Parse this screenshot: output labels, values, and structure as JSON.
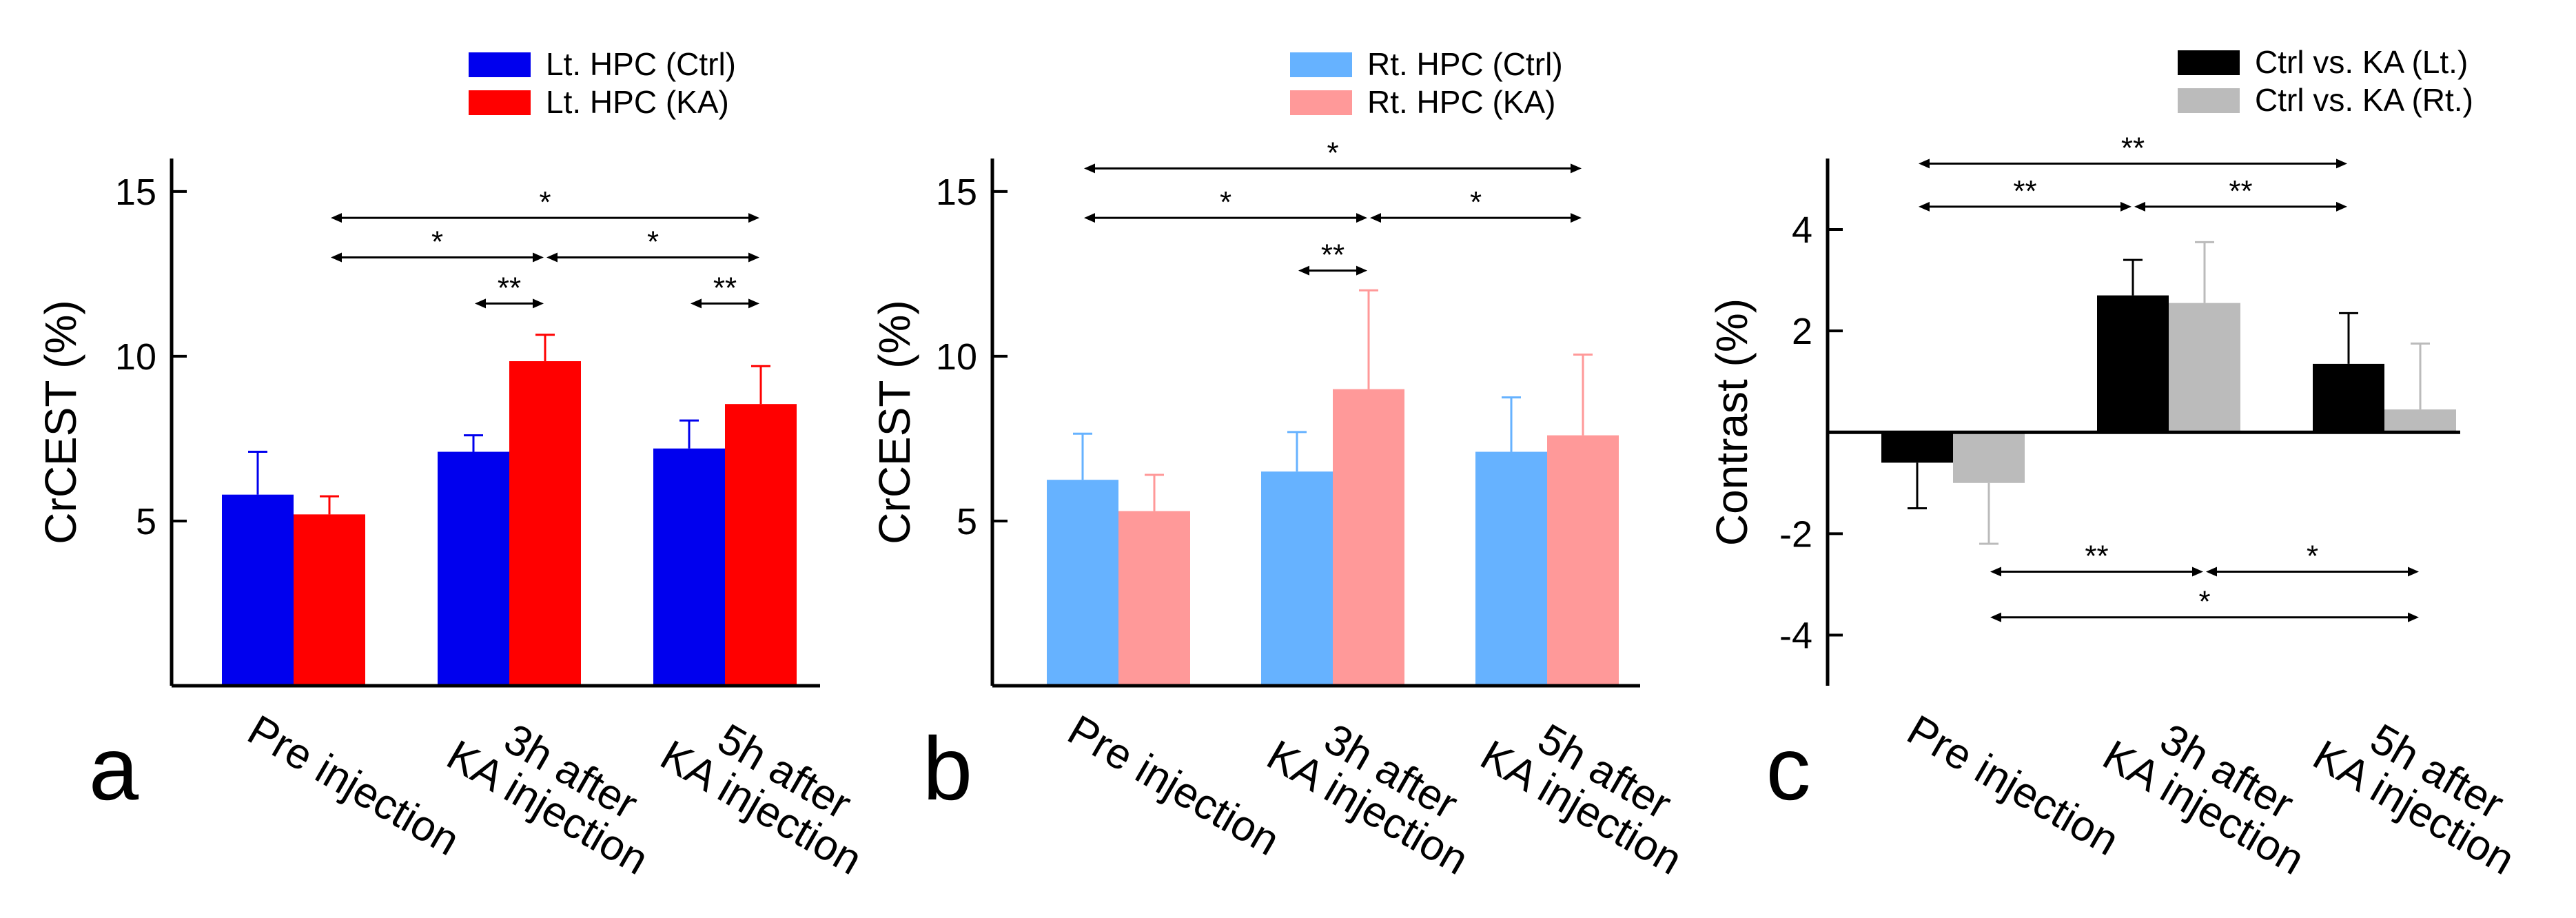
{
  "figure_title": "",
  "chart_data": [
    {
      "type": "bar",
      "panel_label": "a",
      "title": "",
      "ylabel": "CrCEST (%)",
      "xlabel": "",
      "ylim": [
        0,
        16
      ],
      "yticks": [
        5,
        10,
        15
      ],
      "categories": [
        {
          "line1": "Pre injection",
          "line2": ""
        },
        {
          "line1": "3h after",
          "line2": "KA injection"
        },
        {
          "line1": "5h after",
          "line2": "KA injection"
        }
      ],
      "series": [
        {
          "name": "Lt. HPC (Ctrl)",
          "color": "#0000ee",
          "values": [
            5.8,
            7.1,
            7.2
          ],
          "errors": [
            1.3,
            0.5,
            0.85
          ]
        },
        {
          "name": "Lt. HPC (KA)",
          "color": "#ff0000",
          "values": [
            5.2,
            9.85,
            8.55
          ],
          "errors": [
            0.55,
            0.8,
            1.15
          ]
        }
      ],
      "significance": [
        {
          "from": [
            1,
            0
          ],
          "to": [
            1,
            1
          ],
          "label": "**",
          "y": 11.6
        },
        {
          "from": [
            2,
            0
          ],
          "to": [
            2,
            1
          ],
          "label": "**",
          "y": 11.6
        },
        {
          "from": [
            0,
            1
          ],
          "to": [
            1,
            1
          ],
          "label": "*",
          "y": 13.0
        },
        {
          "from": [
            1,
            1
          ],
          "to": [
            2,
            1
          ],
          "label": "*",
          "y": 13.0
        },
        {
          "from": [
            0,
            1
          ],
          "to": [
            2,
            1
          ],
          "label": "*",
          "y": 14.2
        }
      ]
    },
    {
      "type": "bar",
      "panel_label": "b",
      "title": "",
      "ylabel": "CrCEST (%)",
      "xlabel": "",
      "ylim": [
        0,
        16
      ],
      "yticks": [
        5,
        10,
        15
      ],
      "categories": [
        {
          "line1": "Pre injection",
          "line2": ""
        },
        {
          "line1": "3h after",
          "line2": "KA injection"
        },
        {
          "line1": "5h after",
          "line2": "KA injection"
        }
      ],
      "series": [
        {
          "name": "Rt. HPC (Ctrl)",
          "color": "#66b2ff",
          "values": [
            6.25,
            6.5,
            7.1
          ],
          "errors": [
            1.4,
            1.2,
            1.65
          ]
        },
        {
          "name": "Rt. HPC (KA)",
          "color": "#ff9999",
          "values": [
            5.3,
            9.0,
            7.6
          ],
          "errors": [
            1.1,
            3.0,
            2.45
          ]
        }
      ],
      "significance": [
        {
          "from": [
            1,
            0
          ],
          "to": [
            1,
            1
          ],
          "label": "**",
          "y": 12.6
        },
        {
          "from": [
            0,
            0
          ],
          "to": [
            1,
            1
          ],
          "label": "*",
          "y": 14.2
        },
        {
          "from": [
            1,
            1
          ],
          "to": [
            2,
            1
          ],
          "label": "*",
          "y": 14.2
        },
        {
          "from": [
            0,
            0
          ],
          "to": [
            2,
            1
          ],
          "label": "*",
          "y": 15.7
        }
      ]
    },
    {
      "type": "bar",
      "panel_label": "c",
      "title": "",
      "ylabel": "Contrast (%)",
      "xlabel": "",
      "ylim": [
        -5,
        5.4
      ],
      "yticks": [
        4,
        2,
        -2,
        -4
      ],
      "categories": [
        {
          "line1": "Pre injection",
          "line2": ""
        },
        {
          "line1": "3h after",
          "line2": "KA injection"
        },
        {
          "line1": "5h after",
          "line2": "KA injection"
        }
      ],
      "series": [
        {
          "name": "Ctrl vs. KA (Lt.)",
          "color": "#000000",
          "values": [
            -0.6,
            2.7,
            1.35
          ],
          "errors": [
            0.9,
            0.7,
            1.0
          ]
        },
        {
          "name": "Ctrl vs. KA (Rt.)",
          "color": "#bbbbbb",
          "values": [
            -1.0,
            2.55,
            0.45
          ],
          "errors": [
            1.2,
            1.2,
            1.3
          ]
        }
      ],
      "significance": [
        {
          "from": [
            0,
            0
          ],
          "to": [
            1,
            0
          ],
          "label": "**",
          "y": 4.45
        },
        {
          "from": [
            1,
            0
          ],
          "to": [
            2,
            0
          ],
          "label": "**",
          "y": 4.45
        },
        {
          "from": [
            0,
            0
          ],
          "to": [
            2,
            0
          ],
          "label": "**",
          "y": 5.3
        },
        {
          "from": [
            0,
            1
          ],
          "to": [
            1,
            1
          ],
          "label": "**",
          "y": -2.75
        },
        {
          "from": [
            1,
            1
          ],
          "to": [
            2,
            1
          ],
          "label": "*",
          "y": -2.75
        },
        {
          "from": [
            0,
            1
          ],
          "to": [
            2,
            1
          ],
          "label": "*",
          "y": -3.65
        }
      ]
    }
  ]
}
